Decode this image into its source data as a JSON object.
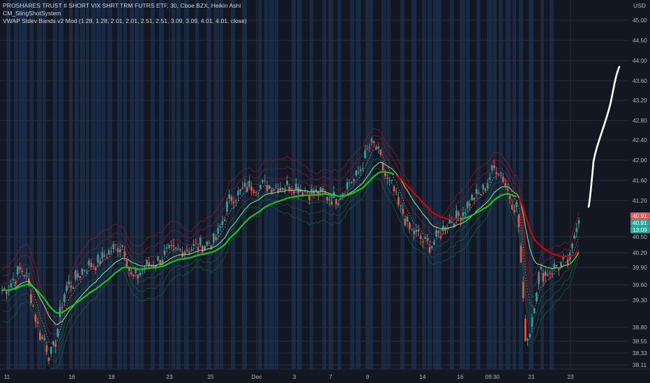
{
  "legend": {
    "symbol_line": "PROSHARES TRUST II SHORT VIX SHRT TRM FUTRS ETF, 30, Cboe BZX, Heikin Ashi",
    "indicator_1": "CM_SlingShotSystem",
    "indicator_2": "VWAP Stdev Bands v2 Mod (1.28, 1.28, 2.01, 2.01, 2.51, 2.51, 3.09, 3.09, 4.01, 4.01, close)"
  },
  "price_axis": {
    "unit": "USD",
    "ticks": [
      "45.00",
      "44.50",
      "44.00",
      "43.60",
      "43.20",
      "42.80",
      "42.40",
      "42.00",
      "41.60",
      "41.20",
      "40.50",
      "40.20",
      "39.90",
      "39.60",
      "39.30",
      "38.80",
      "38.55",
      "38.33",
      "38.11"
    ],
    "badges": [
      {
        "label": "40.91",
        "color": "#ef5350"
      },
      {
        "label": "40.91",
        "color": "#26a69a"
      },
      {
        "label": "13:09",
        "color": "#26a69a"
      }
    ]
  },
  "time_axis": {
    "labels": [
      "11",
      "16",
      "18",
      "23",
      "25",
      "Dec",
      "3",
      "7",
      "9",
      "14",
      "16",
      "09:30",
      "21",
      "23"
    ]
  },
  "colors": {
    "background": "#131722",
    "grid": "#2a2e39",
    "up": "#26a69a",
    "down": "#ef5350",
    "session_band": "#1e3a5f",
    "fast_ema": "#00e676",
    "slow_ema_up": "#1fbf1f",
    "slow_ema_down": "#d50000",
    "upper_band": "#8b1e2c",
    "lower_band": "#1b5e3a",
    "vwap": "#d8a890",
    "annotation": "#ffffff"
  },
  "chart_data": {
    "type": "candlestick",
    "style": "Heikin Ashi",
    "timeframe": "30",
    "ylim": [
      38.0,
      45.1
    ],
    "last_price": 40.91,
    "grid": true,
    "price_path": [
      {
        "x": "11",
        "y": 39.5
      },
      {
        "x": "",
        "y": 39.85
      },
      {
        "x": "",
        "y": 38.6
      },
      {
        "x": "",
        "y": 38.3
      },
      {
        "x": "16",
        "y": 39.6
      },
      {
        "x": "",
        "y": 39.95
      },
      {
        "x": "18",
        "y": 40.35
      },
      {
        "x": "",
        "y": 39.7
      },
      {
        "x": "",
        "y": 39.95
      },
      {
        "x": "23",
        "y": 40.2
      },
      {
        "x": "",
        "y": 40.3
      },
      {
        "x": "25",
        "y": 40.4
      },
      {
        "x": "",
        "y": 41.3
      },
      {
        "x": "",
        "y": 41.5
      },
      {
        "x": "Dec",
        "y": 41.5
      },
      {
        "x": "3",
        "y": 41.5
      },
      {
        "x": "",
        "y": 41.35
      },
      {
        "x": "7",
        "y": 41.25
      },
      {
        "x": "",
        "y": 41.6
      },
      {
        "x": "9",
        "y": 42.3
      },
      {
        "x": "",
        "y": 41.5
      },
      {
        "x": "",
        "y": 41.0
      },
      {
        "x": "14",
        "y": 40.6
      },
      {
        "x": "",
        "y": 40.35
      },
      {
        "x": "16",
        "y": 40.85
      },
      {
        "x": "",
        "y": 41.3
      },
      {
        "x": "09:30",
        "y": 41.85
      },
      {
        "x": "",
        "y": 41.1
      },
      {
        "x": "21",
        "y": 38.6
      },
      {
        "x": "",
        "y": 39.8
      },
      {
        "x": "23",
        "y": 40.0
      },
      {
        "x": "",
        "y": 40.91
      }
    ]
  }
}
